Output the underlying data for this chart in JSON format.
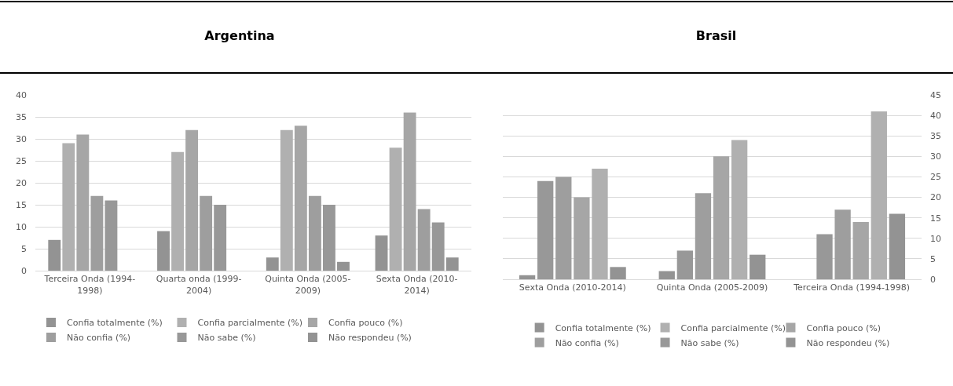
{
  "chart_data": [
    {
      "type": "bar",
      "title": "Argentina",
      "categories": [
        "Terceira Onda (1994-1998)",
        "Quarta onda (1999-2004)",
        "Quinta Onda (2005-2009)",
        "Sexta Onda (2010-2014)"
      ],
      "series": [
        {
          "name": "Confia totalmente (%)",
          "color": "#939393",
          "values": [
            7,
            9,
            3,
            8
          ]
        },
        {
          "name": "Confia parcialmente (%)",
          "color": "#b0b0b0",
          "values": [
            29,
            27,
            32,
            28
          ]
        },
        {
          "name": "Confia pouco (%)",
          "color": "#a6a6a6",
          "values": [
            31,
            32,
            33,
            36
          ]
        },
        {
          "name": "Não confia (%)",
          "color": "#9e9e9e",
          "values": [
            17,
            17,
            17,
            14
          ]
        },
        {
          "name": "Não sabe (%)",
          "color": "#989898",
          "values": [
            16,
            15,
            15,
            11
          ]
        },
        {
          "name": "Não respondeu (%)",
          "color": "#939393",
          "values": [
            null,
            null,
            2,
            3
          ]
        }
      ],
      "ylim": [
        0,
        40
      ],
      "yticks": [
        0,
        5,
        10,
        15,
        20,
        25,
        30,
        35,
        40
      ],
      "grid": "y",
      "legend": "bottom"
    },
    {
      "type": "bar",
      "title": "Brasil",
      "categories": [
        "Sexta Onda (2010-2014)",
        "Quinta Onda (2005-2009)",
        "Terceira Onda (1994-1998)"
      ],
      "series": [
        {
          "name": "Confia totalmente (%)",
          "color": "#939393",
          "values": [
            3,
            6,
            16
          ]
        },
        {
          "name": "Confia parcialmente (%)",
          "color": "#b0b0b0",
          "values": [
            27,
            34,
            41
          ]
        },
        {
          "name": "Confia pouco (%)",
          "color": "#a6a6a6",
          "values": [
            20,
            30,
            14
          ]
        },
        {
          "name": "Não confia (%)",
          "color": "#9e9e9e",
          "values": [
            25,
            21,
            17
          ]
        },
        {
          "name": "Não sabe (%)",
          "color": "#989898",
          "values": [
            24,
            7,
            11
          ]
        },
        {
          "name": "Não respondeu (%)",
          "color": "#939393",
          "values": [
            1,
            2,
            null
          ]
        }
      ],
      "ylim": [
        0,
        45
      ],
      "yticks": [
        0,
        5,
        10,
        15,
        20,
        25,
        30,
        35,
        40,
        45
      ],
      "grid": "y",
      "legend": "bottom"
    }
  ]
}
